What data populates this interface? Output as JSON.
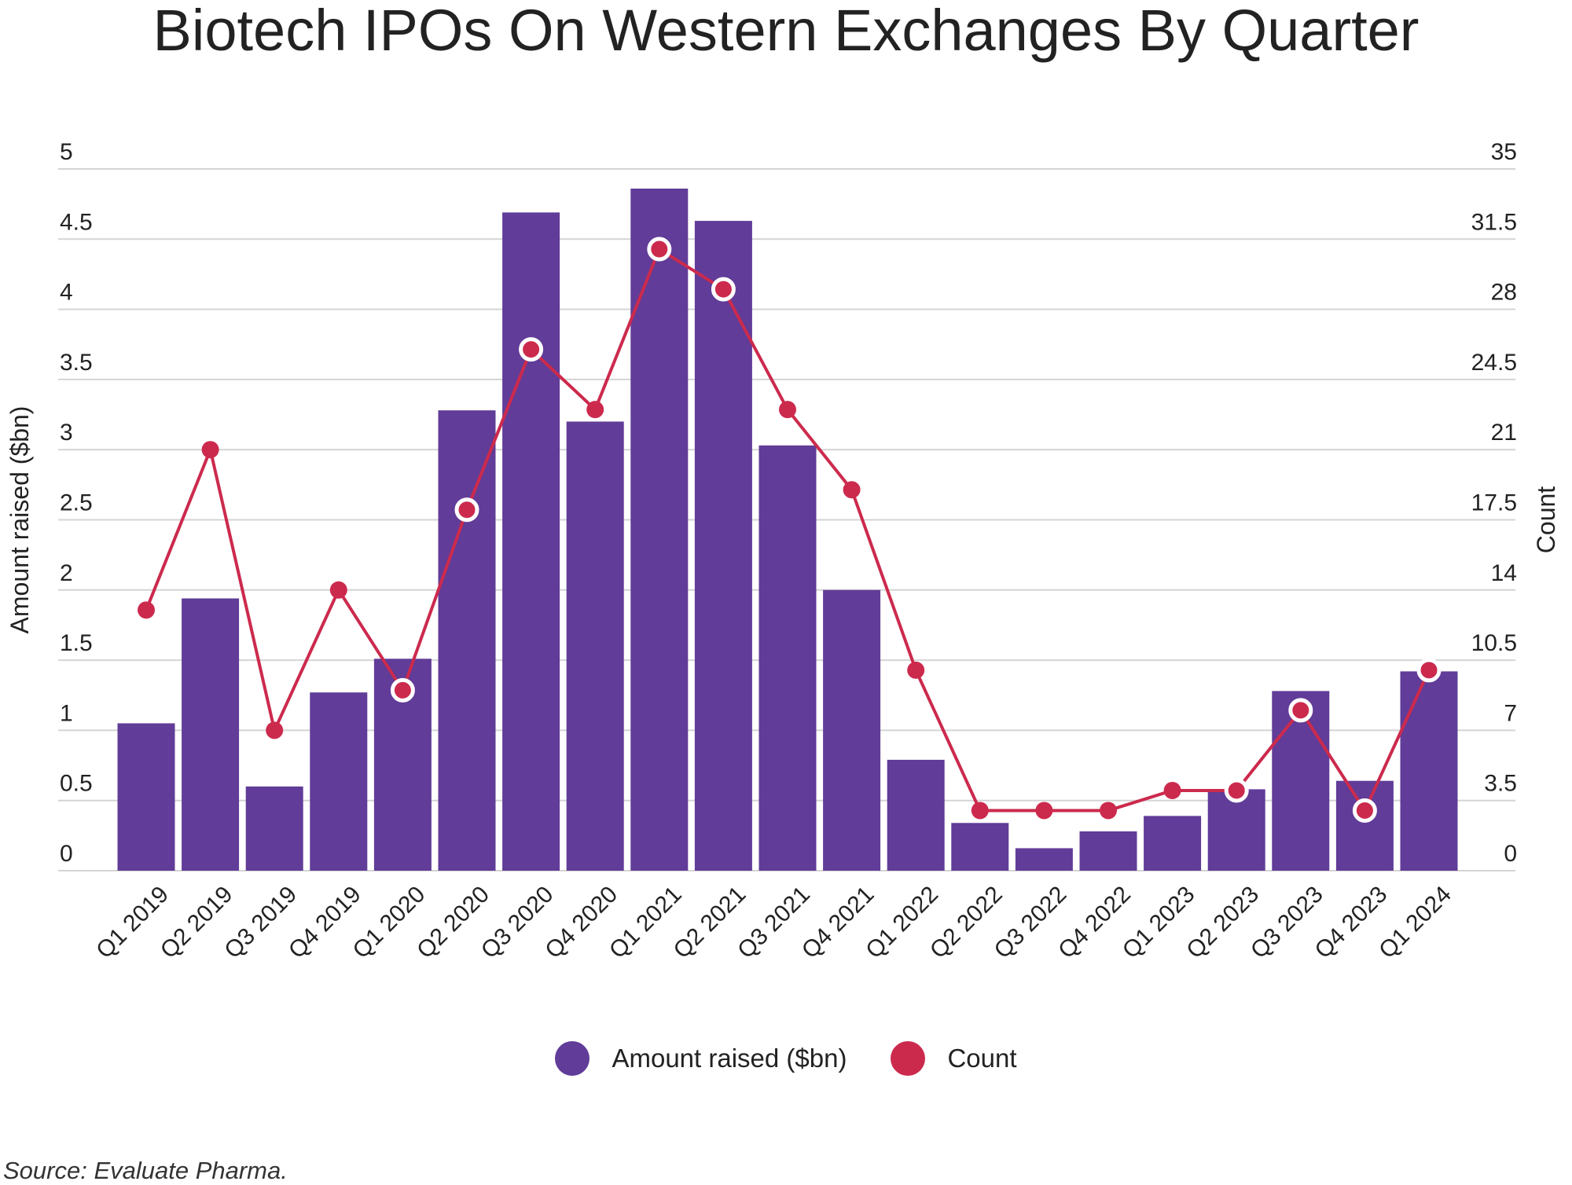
{
  "chart_data": {
    "type": "bar",
    "title": "Biotech IPOs On Western Exchanges By Quarter",
    "categories": [
      "Q1 2019",
      "Q2 2019",
      "Q3 2019",
      "Q4 2019",
      "Q1 2020",
      "Q2 2020",
      "Q3 2020",
      "Q4 2020",
      "Q1 2021",
      "Q2 2021",
      "Q3 2021",
      "Q4 2021",
      "Q1 2022",
      "Q2 2022",
      "Q3 2022",
      "Q4 2022",
      "Q1 2023",
      "Q2 2023",
      "Q3 2023",
      "Q4 2023",
      "Q1 2024"
    ],
    "series": [
      {
        "name": "Amount raised ($bn)",
        "type": "bar",
        "axis": "left",
        "values": [
          1.05,
          1.94,
          0.6,
          1.27,
          1.51,
          3.28,
          4.69,
          3.2,
          4.86,
          4.63,
          3.03,
          2.0,
          0.79,
          0.34,
          0.16,
          0.28,
          0.39,
          0.58,
          1.28,
          0.64,
          1.42
        ]
      },
      {
        "name": "Count",
        "type": "line",
        "axis": "right",
        "values": [
          13,
          21,
          7,
          14,
          9,
          18,
          26,
          23,
          31,
          29,
          23,
          19,
          10,
          3,
          3,
          3,
          4,
          4,
          8,
          3,
          10
        ],
        "ringed": [
          false,
          false,
          false,
          false,
          true,
          true,
          true,
          false,
          true,
          true,
          false,
          false,
          false,
          false,
          false,
          false,
          false,
          true,
          true,
          true,
          true
        ]
      }
    ],
    "ylabel": "Amount raised ($bn)",
    "y2label": "Count",
    "ylim": [
      0,
      5
    ],
    "y2lim": [
      0,
      35
    ],
    "yticks": [
      "0",
      "0.5",
      "1",
      "1.5",
      "2",
      "2.5",
      "3",
      "3.5",
      "4",
      "4.5",
      "5"
    ],
    "y2ticks": [
      "0",
      "3.5",
      "7",
      "10.5",
      "14",
      "17.5",
      "21",
      "24.5",
      "28",
      "31.5",
      "35"
    ],
    "grid": true,
    "legend_position": "bottom"
  },
  "colors": {
    "bar": "#613c98",
    "line": "#cc2a4d",
    "grid": "#d4d4d4",
    "text": "#222222"
  },
  "legend": [
    {
      "label": "Amount raised ($bn)",
      "color": "#613c98"
    },
    {
      "label": "Count",
      "color": "#cc2a4d"
    }
  ],
  "source": "Source: Evaluate Pharma."
}
